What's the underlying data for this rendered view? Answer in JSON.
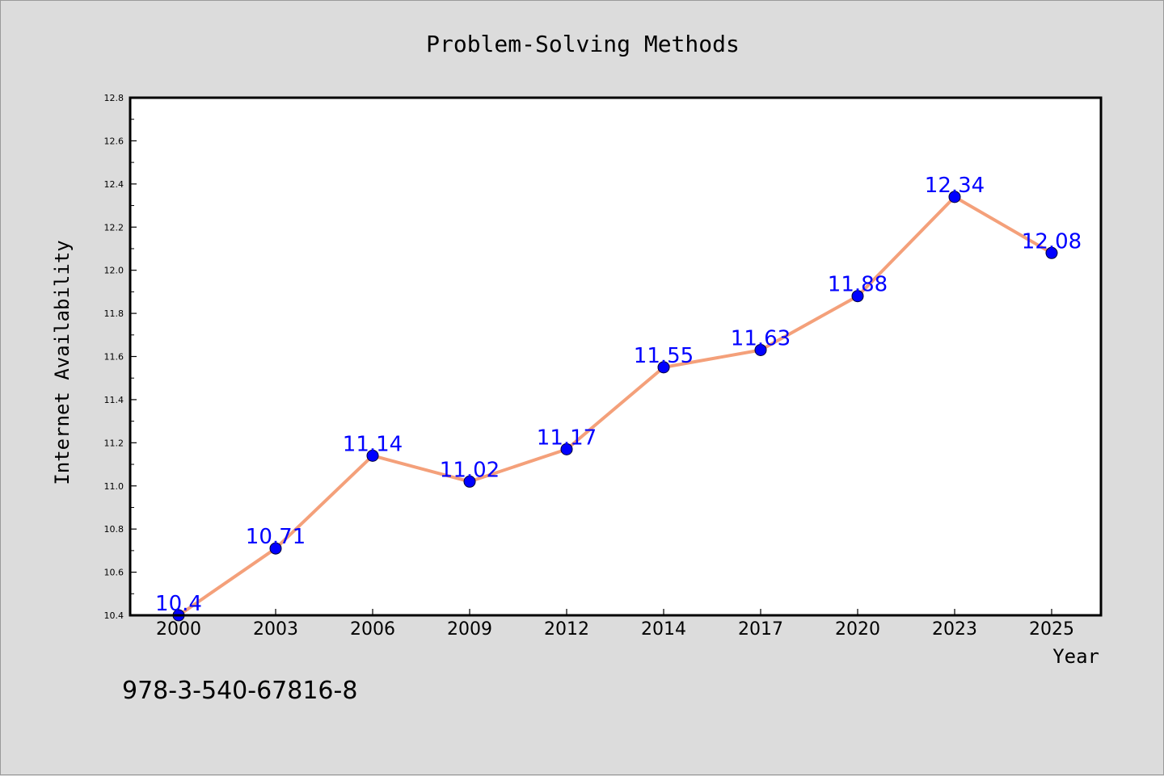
{
  "chart_data": {
    "type": "line",
    "title": "Problem-Solving Methods",
    "xlabel": "Year",
    "ylabel": "Internet Availability",
    "categories": [
      "2000",
      "2003",
      "2006",
      "2009",
      "2012",
      "2014",
      "2017",
      "2020",
      "2023",
      "2025"
    ],
    "series": [
      {
        "values": [
          10.4,
          10.71,
          11.14,
          11.02,
          11.17,
          11.55,
          11.63,
          11.88,
          12.34,
          12.08
        ],
        "data_labels": [
          "10.4",
          "10.71",
          "11.14",
          "11.02",
          "11.17",
          "11.55",
          "11.63",
          "11.88",
          "12.34",
          "12.08"
        ],
        "line_color": "#f4a07a",
        "marker_color": "#0000ff"
      }
    ],
    "ylim": [
      10.4,
      12.8
    ],
    "yticks": [
      "10.4",
      "10.6",
      "10.8",
      "11.0",
      "11.2",
      "11.4",
      "11.6",
      "11.8",
      "12.0",
      "12.2",
      "12.4",
      "12.6",
      "12.8"
    ],
    "grid": false,
    "legend": "none",
    "label_color": "#0000ff"
  },
  "footer_text": "978-3-540-67816-8"
}
